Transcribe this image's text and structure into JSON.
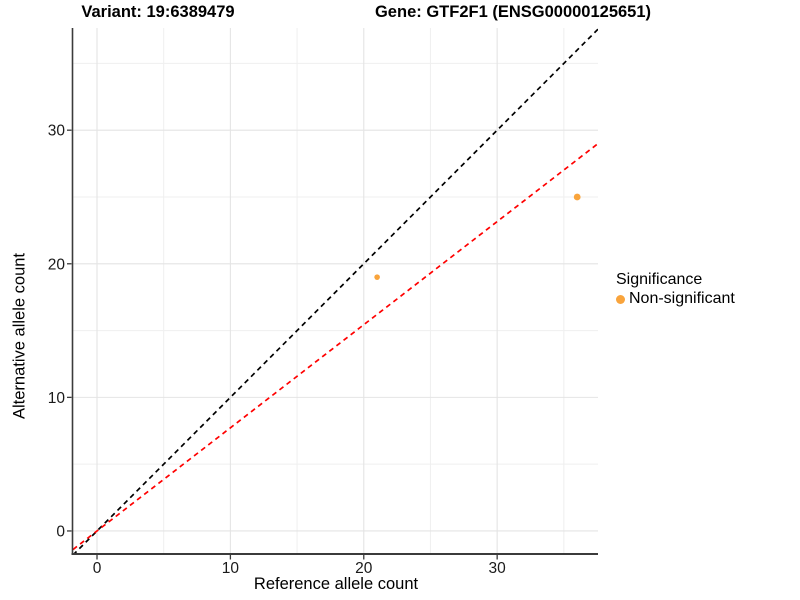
{
  "chart_data": {
    "type": "scatter",
    "title_left": "Variant: 19:6389479",
    "title_right": "Gene: GTF2F1 (ENSG00000125651)",
    "xlabel": "Reference allele count",
    "ylabel": "Alternative allele count",
    "xlim": [
      -1.8,
      37.56
    ],
    "ylim": [
      -1.65,
      37.65
    ],
    "x_major_ticks": [
      0,
      10,
      20,
      30
    ],
    "x_minor_ticks": [
      5,
      15,
      25,
      35
    ],
    "y_major_ticks": [
      0,
      10,
      20,
      30
    ],
    "y_minor_ticks": [
      5,
      15,
      25,
      35
    ],
    "grid": true,
    "series": [
      {
        "name": "Non-significant",
        "points": [
          {
            "x": 21,
            "y": 19,
            "r": 2.8
          },
          {
            "x": 36,
            "y": 25,
            "r": 3.4
          }
        ]
      }
    ],
    "lines": [
      {
        "name": "identity-line",
        "slope": 1.0,
        "intercept": 0,
        "color": "#000000",
        "style": "dashed"
      },
      {
        "name": "expected-ratio-line",
        "slope": 0.772,
        "intercept": 0,
        "color": "#FF0000",
        "style": "dashed"
      }
    ],
    "legend": {
      "title": "Significance",
      "position": "right",
      "items": [
        {
          "label": "Non-significant",
          "color": "#F9A43C",
          "marker": "circle-icon"
        }
      ]
    },
    "colors": {
      "point": "#F9A43C",
      "grid_major": "#E4E4E4",
      "grid_minor": "#EFEFEF",
      "axis_line": "#3B3B3B",
      "tick_text": "#1A1A1A"
    }
  }
}
